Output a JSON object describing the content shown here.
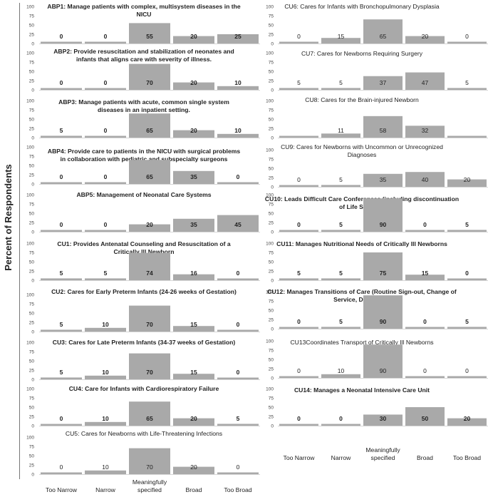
{
  "y_axis_title": "Percent of Respondents",
  "chart_data": {
    "type": "bar",
    "ylabel": "Percent of Respondents",
    "ylim": [
      0,
      100
    ],
    "yticks": [
      0,
      25,
      50,
      75,
      100
    ],
    "categories": [
      "Too Narrow",
      "Narrow",
      "Meaningfully specified",
      "Broad",
      "Too Broad"
    ],
    "category_labels": [
      "Too Narrow",
      "Narrow",
      "Meaningfully\nspecified",
      "Broad",
      "Too Broad"
    ],
    "panels": [
      {
        "column": "left",
        "title": "ABP1: Manage patients with complex, multisystem diseases in the NICU",
        "title_lines": [
          "ABP1: Manage patients with complex, multisystem diseases in the",
          "NICU"
        ],
        "values": [
          0,
          0,
          55,
          20,
          25
        ],
        "labels": [
          "0",
          "0",
          "55",
          "20",
          "25"
        ],
        "bold": true
      },
      {
        "column": "left",
        "title": "ABP2: Provide resuscitation and stabilization of neonates and infants that aligns care with severity of illness.",
        "title_lines": [
          "ABP2: Provide resuscitation and stabilization of neonates and",
          "infants that aligns care with severity of illness."
        ],
        "values": [
          0,
          0,
          70,
          20,
          10
        ],
        "labels": [
          "0",
          "0",
          "70",
          "20",
          "10"
        ],
        "bold": true
      },
      {
        "column": "left",
        "title": "ABP3: Manage patients with acute, common single system diseases in an inpatient setting.",
        "title_lines": [
          "ABP3: Manage patients with acute, common single system",
          "diseases in an inpatient setting."
        ],
        "values": [
          5,
          0,
          65,
          20,
          10
        ],
        "labels": [
          "5",
          "0",
          "65",
          "20",
          "10"
        ],
        "bold": true
      },
      {
        "column": "left",
        "title": "ABP4: Provide care to patients in the NICU with surgical problems in collaboration with pediatric and subspecialty surgeons",
        "title_lines": [
          "ABP4: Provide care to patients in the NICU with surgical problems",
          "in collaboration with pediatric and subspecialty surgeons"
        ],
        "values": [
          0,
          0,
          65,
          35,
          0
        ],
        "labels": [
          "0",
          "0",
          "65",
          "35",
          "0"
        ],
        "bold": true
      },
      {
        "column": "left",
        "title": "ABP5: Management of Neonatal Care Systems",
        "title_lines": [
          "ABP5: Management of Neonatal Care Systems"
        ],
        "values": [
          0,
          0,
          20,
          35,
          45
        ],
        "labels": [
          "0",
          "0",
          "20",
          "35",
          "45"
        ],
        "bold": true
      },
      {
        "column": "left",
        "title": "CU1: Provides Antenatal Counseling and Resuscitation of a Critically Ill Newborn",
        "title_lines": [
          "CU1: Provides Antenatal Counseling and Resuscitation of a",
          "Critically Ill Newborn"
        ],
        "values": [
          5,
          5,
          74,
          16,
          0
        ],
        "labels": [
          "5",
          "5",
          "74",
          "16",
          "0"
        ],
        "bold": true
      },
      {
        "column": "left",
        "title": "CU2: Cares for Early Preterm Infants (24-26 weeks of Gestation)",
        "title_lines": [
          "CU2: Cares for Early Preterm Infants (24-26 weeks of Gestation)"
        ],
        "values": [
          5,
          10,
          70,
          15,
          0
        ],
        "labels": [
          "5",
          "10",
          "70",
          "15",
          "0"
        ],
        "bold": true
      },
      {
        "column": "left",
        "title": "CU3: Cares for Late Preterm Infants (34-37 weeks of Gestation)",
        "title_lines": [
          "CU3: Cares for Late Preterm Infants (34-37 weeks of Gestation)"
        ],
        "values": [
          5,
          10,
          70,
          15,
          0
        ],
        "labels": [
          "5",
          "10",
          "70",
          "15",
          "0"
        ],
        "bold": true
      },
      {
        "column": "left",
        "title": "CU4: Care for Infants with Cardiorespiratory Failure",
        "title_lines": [
          "CU4: Care for Infants with Cardiorespiratory Failure"
        ],
        "values": [
          0,
          10,
          65,
          20,
          5
        ],
        "labels": [
          "0",
          "10",
          "65",
          "20",
          "5"
        ],
        "bold": true
      },
      {
        "column": "left",
        "title": "CU5: Cares for Newborns with Life-Threatening Infections",
        "title_lines": [
          "CU5: Cares for Newborns with Life-Threatening Infections"
        ],
        "values": [
          0,
          10,
          70,
          20,
          0
        ],
        "labels": [
          "0",
          "10",
          "70",
          "20",
          "0"
        ],
        "bold": false
      },
      {
        "column": "right",
        "title": "CU6: Cares for Infants with Bronchopulmonary Dysplasia",
        "title_lines": [
          "CU6: Cares for Infants with Bronchopulmonary Dysplasia"
        ],
        "values": [
          0,
          15,
          65,
          20,
          0
        ],
        "labels": [
          "0",
          "15",
          "65",
          "20",
          "0"
        ],
        "bold": false
      },
      {
        "column": "right",
        "title": "CU7: Cares for Newborns Requiring Surgery",
        "title_lines": [
          "CU7: Cares for Newborns Requiring Surgery"
        ],
        "values": [
          5,
          5,
          37,
          47,
          5
        ],
        "labels": [
          "5",
          "5",
          "37",
          "47",
          "5"
        ],
        "bold": false
      },
      {
        "column": "right",
        "title": "CU8: Cares for the Brain-injured Newborn",
        "title_lines": [
          "CU8: Cares for the Brain-injured Newborn"
        ],
        "values": [
          0,
          11,
          58,
          32,
          0
        ],
        "labels": [
          "",
          "11",
          "58",
          "32",
          ""
        ],
        "bold": false
      },
      {
        "column": "right",
        "title": "CU9: Cares for Newborns with Uncommon or Unrecognized Diagnoses",
        "title_lines": [
          "CU9: Cares  for Newborns with Uncommon or Unrecognized",
          "Diagnoses"
        ],
        "values": [
          0,
          5,
          35,
          40,
          20
        ],
        "labels": [
          "0",
          "5",
          "35",
          "40",
          "20"
        ],
        "bold": false
      },
      {
        "column": "right",
        "title": "CU10: Leads Difficult Care Conferences (including discontinuation of Life Support)",
        "title_lines": [
          "CU10: Leads Difficult Care Conferences (including discontinuation",
          "of Life Support)"
        ],
        "values": [
          0,
          5,
          90,
          0,
          5
        ],
        "labels": [
          "0",
          "5",
          "90",
          "0",
          "5"
        ],
        "bold": true
      },
      {
        "column": "right",
        "title": "CU11: Manages Nutritional Needs of Critically Ill Newborns",
        "title_lines": [
          "CU11: Manages Nutritional Needs of Critically Ill Newborns"
        ],
        "values": [
          5,
          5,
          75,
          15,
          0
        ],
        "labels": [
          "5",
          "5",
          "75",
          "15",
          "0"
        ],
        "bold": true
      },
      {
        "column": "right",
        "title": "CU12: Manages Transitions of Care (Routine Sign-out, Change of Service, Discharge)",
        "title_lines": [
          "CU12: Manages Transitions of Care (Routine Sign-out, Change of",
          "Service, Discharge)"
        ],
        "values": [
          0,
          5,
          90,
          0,
          5
        ],
        "labels": [
          "0",
          "5",
          "90",
          "0",
          "5"
        ],
        "bold": true
      },
      {
        "column": "right",
        "title": "CU13Coordinates Transport of Critically Ill Newborns",
        "title_lines": [
          "CU13Coordinates Transport of Critically Ill Newborns"
        ],
        "values": [
          0,
          10,
          90,
          0,
          0
        ],
        "labels": [
          "0",
          "10",
          "90",
          "0",
          "0"
        ],
        "bold": false
      },
      {
        "column": "right",
        "title": "CU14: Manages a Neonatal Intensive Care Unit",
        "title_lines": [
          "CU14: Manages a Neonatal Intensive Care Unit"
        ],
        "values": [
          0,
          0,
          30,
          50,
          20
        ],
        "labels": [
          "0",
          "0",
          "30",
          "50",
          "20"
        ],
        "bold": true
      }
    ]
  }
}
